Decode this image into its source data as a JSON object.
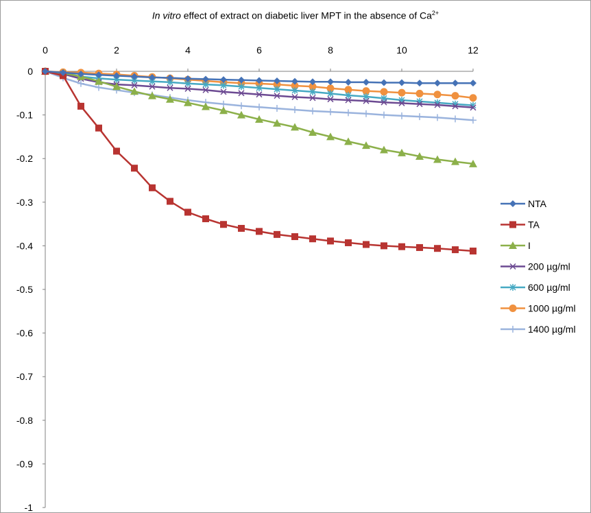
{
  "chart_data": {
    "type": "line",
    "title": {
      "italic": "In vitro",
      "rest": " effect of extract on diabetic liver MPT in the absence of Ca",
      "sup": "2+"
    },
    "xlabel": "",
    "ylabel": "",
    "xlim": [
      0,
      12
    ],
    "ylim": [
      -1,
      0
    ],
    "x_ticks": [
      "0",
      "2",
      "4",
      "6",
      "8",
      "10",
      "12"
    ],
    "y_ticks": [
      "0",
      "-0.1",
      "-0.2",
      "-0.3",
      "-0.4",
      "-0.5",
      "-0.6",
      "-0.7",
      "-0.8",
      "-0.9",
      "-1"
    ],
    "x_axis_position": "top",
    "grid": false,
    "legend": "right",
    "x": [
      0,
      0.5,
      1,
      1.5,
      2,
      2.5,
      3,
      3.5,
      4,
      4.5,
      5,
      5.5,
      6,
      6.5,
      7,
      7.5,
      8,
      8.5,
      9,
      9.5,
      10,
      10.5,
      11,
      11.5,
      12
    ],
    "series": [
      {
        "name": "NTA",
        "color": "#4572b6",
        "marker": "diamond",
        "values": [
          0,
          -0.003,
          -0.006,
          -0.008,
          -0.01,
          -0.012,
          -0.014,
          -0.015,
          -0.017,
          -0.018,
          -0.019,
          -0.02,
          -0.021,
          -0.022,
          -0.023,
          -0.024,
          -0.024,
          -0.025,
          -0.025,
          -0.026,
          -0.026,
          -0.027,
          -0.027,
          -0.027,
          -0.027
        ]
      },
      {
        "name": "TA",
        "color": "#b83431",
        "marker": "square",
        "values": [
          0,
          -0.01,
          -0.08,
          -0.13,
          -0.183,
          -0.222,
          -0.267,
          -0.298,
          -0.323,
          -0.338,
          -0.351,
          -0.36,
          -0.367,
          -0.374,
          -0.379,
          -0.384,
          -0.389,
          -0.393,
          -0.397,
          -0.4,
          -0.402,
          -0.404,
          -0.406,
          -0.409,
          -0.412
        ]
      },
      {
        "name": "I",
        "color": "#8cb04a",
        "marker": "triangle",
        "values": [
          0,
          -0.004,
          -0.012,
          -0.023,
          -0.035,
          -0.046,
          -0.056,
          -0.064,
          -0.072,
          -0.081,
          -0.09,
          -0.1,
          -0.11,
          -0.119,
          -0.128,
          -0.14,
          -0.15,
          -0.161,
          -0.17,
          -0.18,
          -0.187,
          -0.195,
          -0.202,
          -0.207,
          -0.212
        ]
      },
      {
        "name": "200 µg/ml",
        "color": "#6c4a92",
        "marker": "x",
        "values": [
          0,
          -0.006,
          -0.017,
          -0.025,
          -0.03,
          -0.032,
          -0.035,
          -0.038,
          -0.04,
          -0.043,
          -0.047,
          -0.05,
          -0.053,
          -0.056,
          -0.059,
          -0.061,
          -0.064,
          -0.066,
          -0.068,
          -0.071,
          -0.073,
          -0.075,
          -0.077,
          -0.08,
          -0.083
        ]
      },
      {
        "name": "600 µg/ml",
        "color": "#46a9c3",
        "marker": "asterisk",
        "values": [
          0,
          -0.005,
          -0.012,
          -0.016,
          -0.019,
          -0.021,
          -0.023,
          -0.025,
          -0.028,
          -0.03,
          -0.032,
          -0.035,
          -0.038,
          -0.041,
          -0.044,
          -0.047,
          -0.051,
          -0.055,
          -0.058,
          -0.062,
          -0.066,
          -0.069,
          -0.072,
          -0.075,
          -0.078
        ]
      },
      {
        "name": "1000 µg/ml",
        "color": "#f0913f",
        "marker": "circle",
        "values": [
          0,
          -0.002,
          -0.003,
          -0.005,
          -0.007,
          -0.01,
          -0.013,
          -0.016,
          -0.019,
          -0.022,
          -0.025,
          -0.027,
          -0.028,
          -0.03,
          -0.033,
          -0.035,
          -0.039,
          -0.042,
          -0.045,
          -0.047,
          -0.049,
          -0.051,
          -0.053,
          -0.056,
          -0.061
        ]
      },
      {
        "name": "1400 µg/ml",
        "color": "#9ab3dd",
        "marker": "plus",
        "values": [
          0,
          -0.015,
          -0.028,
          -0.037,
          -0.043,
          -0.049,
          -0.054,
          -0.06,
          -0.066,
          -0.071,
          -0.075,
          -0.079,
          -0.082,
          -0.085,
          -0.088,
          -0.091,
          -0.093,
          -0.095,
          -0.097,
          -0.1,
          -0.102,
          -0.104,
          -0.106,
          -0.109,
          -0.112
        ]
      }
    ]
  }
}
